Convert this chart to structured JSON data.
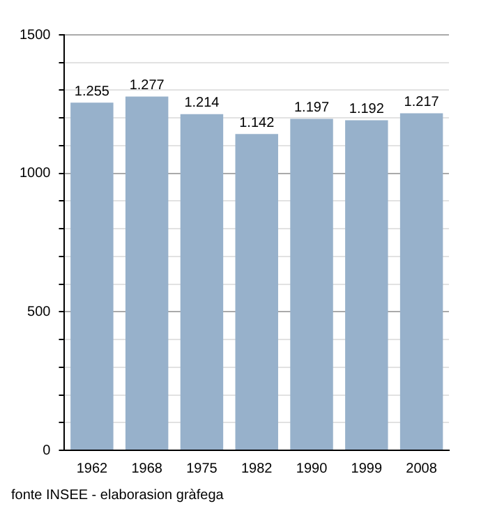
{
  "chart_data": {
    "type": "bar",
    "categories": [
      "1962",
      "1968",
      "1975",
      "1982",
      "1990",
      "1999",
      "2008"
    ],
    "values": [
      1255,
      1277,
      1214,
      1142,
      1197,
      1192,
      1217
    ],
    "value_labels": [
      "1.255",
      "1.277",
      "1.214",
      "1.142",
      "1.197",
      "1.192",
      "1.217"
    ],
    "color": "#97b1cb",
    "ylim": [
      0,
      1500
    ],
    "yticks": [
      0,
      {
        "value": 100,
        "label": null
      },
      {
        "value": 200,
        "label": null
      },
      {
        "value": 300,
        "label": null
      },
      {
        "value": 400,
        "label": null
      },
      500,
      {
        "value": 600,
        "label": null
      },
      {
        "value": 700,
        "label": null
      },
      {
        "value": 800,
        "label": null
      },
      {
        "value": 900,
        "label": null
      },
      1000,
      {
        "value": 1100,
        "label": null
      },
      {
        "value": 1200,
        "label": null
      },
      {
        "value": 1300,
        "label": null
      },
      {
        "value": 1400,
        "label": null
      },
      1500
    ],
    "grid": "y",
    "annotations": [
      "fonte INSEE - elaborasion gràfega"
    ]
  }
}
